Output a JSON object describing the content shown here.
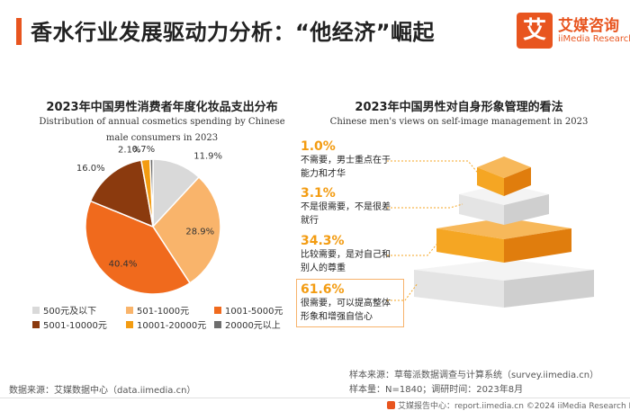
{
  "header": {
    "title": "香水行业发展驱动力分析：“他经济”崛起",
    "logo_mark": "艾",
    "logo_cn": "艾媒咨询",
    "logo_en": "iiMedia Research"
  },
  "left_panel": {
    "title": "2023年中国男性消费者年度化妆品支出分布",
    "subtitle_line1": "Distribution of annual cosmetics spending by Chinese",
    "subtitle_line2": "male consumers in 2023"
  },
  "right_panel": {
    "title": "2023年中国男性对自身形象管理的看法",
    "subtitle": "Chinese men's views on self-image management in 2023"
  },
  "chart_data": [
    {
      "type": "pie",
      "title": "2023年中国男性消费者年度化妆品支出分布",
      "subtitle": "Distribution of annual cosmetics spending by Chinese male consumers in 2023",
      "slices": [
        {
          "label": "500元及以下",
          "value": 11.9,
          "display": "11.9%",
          "color": "#d9d9d9"
        },
        {
          "label": "501-1000元",
          "value": 28.9,
          "display": "28.9%",
          "color": "#f9b46b"
        },
        {
          "label": "1001-5000元",
          "value": 40.4,
          "display": "40.4%",
          "color": "#f06a1d"
        },
        {
          "label": "5001-10000元",
          "value": 16.0,
          "display": "16.0%",
          "color": "#8b3a0e"
        },
        {
          "label": "10001-20000元",
          "value": 2.1,
          "display": "2.1%",
          "color": "#f39c12"
        },
        {
          "label": "20000元以上",
          "value": 0.7,
          "display": "0.7%",
          "color": "#6e6e6e"
        }
      ]
    },
    {
      "type": "pyramid",
      "title": "2023年中国男性对自身形象管理的看法",
      "subtitle": "Chinese men's views on self-image management in 2023",
      "levels": [
        {
          "pct": "1.0%",
          "value": 1.0,
          "line1": "不需要，男士重点在于",
          "line2": "能力和才华",
          "color": "#f5a623"
        },
        {
          "pct": "3.1%",
          "value": 3.1,
          "line1": "不是很需要，不是很差",
          "line2": "就行",
          "color": "#e8e8e8"
        },
        {
          "pct": "34.3%",
          "value": 34.3,
          "line1": "比较需要，是对自己和",
          "line2": "别人的尊重",
          "color": "#f5a623"
        },
        {
          "pct": "61.6%",
          "value": 61.6,
          "line1": "很需要，可以提高整体",
          "line2": "形象和增强自信心",
          "color": "#e8e8e8"
        }
      ]
    }
  ],
  "footer": {
    "source_left": "数据来源：艾媒数据中心（data.iimedia.cn）",
    "sample_source": "样本来源：草莓派数据调查与计算系统（survey.iimedia.cn）",
    "sample_size": "样本量：N=1840；调研时间：2023年8月",
    "bottom": "艾媒报告中心：report.iimedia.cn    ©2024  iiMedia Research  Inc"
  }
}
